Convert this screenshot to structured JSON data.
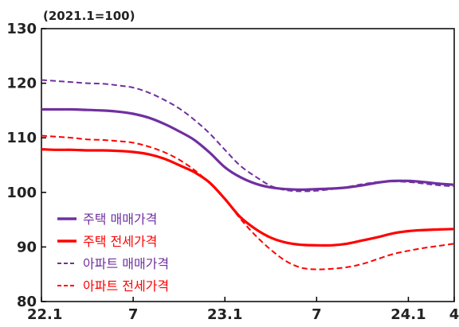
{
  "chart_data": {
    "type": "line",
    "unit_label": "(2021.1=100)",
    "x": [
      "22.1",
      "22.2",
      "22.3",
      "22.4",
      "22.5",
      "22.6",
      "22.7",
      "22.8",
      "22.9",
      "22.10",
      "22.11",
      "22.12",
      "23.1",
      "23.2",
      "23.3",
      "23.4",
      "23.5",
      "23.6",
      "23.7",
      "23.8",
      "23.9",
      "23.10",
      "23.11",
      "23.12",
      "24.1",
      "24.2",
      "24.3",
      "24.4"
    ],
    "x_tick_labels": [
      {
        "at": "22.1",
        "label": "22.1"
      },
      {
        "at": "22.7",
        "label": "7"
      },
      {
        "at": "23.1",
        "label": "23.1"
      },
      {
        "at": "23.7",
        "label": "7"
      },
      {
        "at": "24.1",
        "label": "24.1"
      },
      {
        "at": "24.4",
        "label": "4"
      }
    ],
    "y_ticks": [
      80,
      90,
      100,
      110,
      120,
      130
    ],
    "ylim": [
      80,
      130
    ],
    "grid": false,
    "legend_position": "bottom-left",
    "series": [
      {
        "name": "주택 매매가격",
        "color": "#7030a0",
        "dash": "solid",
        "values": [
          115.2,
          115.2,
          115.2,
          115.1,
          115.0,
          114.8,
          114.4,
          113.7,
          112.6,
          111.2,
          109.6,
          107.3,
          104.6,
          102.8,
          101.6,
          100.9,
          100.6,
          100.5,
          100.6,
          100.7,
          100.9,
          101.3,
          101.8,
          102.1,
          102.1,
          101.9,
          101.6,
          101.4
        ]
      },
      {
        "name": "주택 전세가격",
        "color": "#ff0000",
        "dash": "solid",
        "values": [
          107.9,
          107.8,
          107.8,
          107.7,
          107.7,
          107.6,
          107.4,
          107.0,
          106.2,
          105.0,
          103.7,
          101.8,
          98.8,
          95.5,
          93.3,
          91.7,
          90.8,
          90.4,
          90.3,
          90.3,
          90.6,
          91.2,
          91.8,
          92.5,
          92.9,
          93.1,
          93.2,
          93.3
        ]
      },
      {
        "name": "아파트 매매가격",
        "color": "#7030a0",
        "dash": "dashed",
        "values": [
          120.6,
          120.4,
          120.2,
          120.0,
          119.9,
          119.6,
          119.2,
          118.3,
          117.0,
          115.4,
          113.3,
          110.8,
          107.8,
          104.9,
          102.9,
          101.2,
          100.4,
          100.2,
          100.3,
          100.6,
          101.0,
          101.5,
          101.9,
          102.0,
          101.9,
          101.6,
          101.3,
          101.1
        ]
      },
      {
        "name": "아파트 전세가격",
        "color": "#ff0000",
        "dash": "dashed",
        "values": [
          110.4,
          110.2,
          110.0,
          109.7,
          109.6,
          109.4,
          109.1,
          108.4,
          107.4,
          106.0,
          104.1,
          101.7,
          98.8,
          95.2,
          92.1,
          89.5,
          87.4,
          86.2,
          85.9,
          86.0,
          86.3,
          86.9,
          87.8,
          88.7,
          89.3,
          89.8,
          90.2,
          90.6
        ]
      }
    ]
  }
}
